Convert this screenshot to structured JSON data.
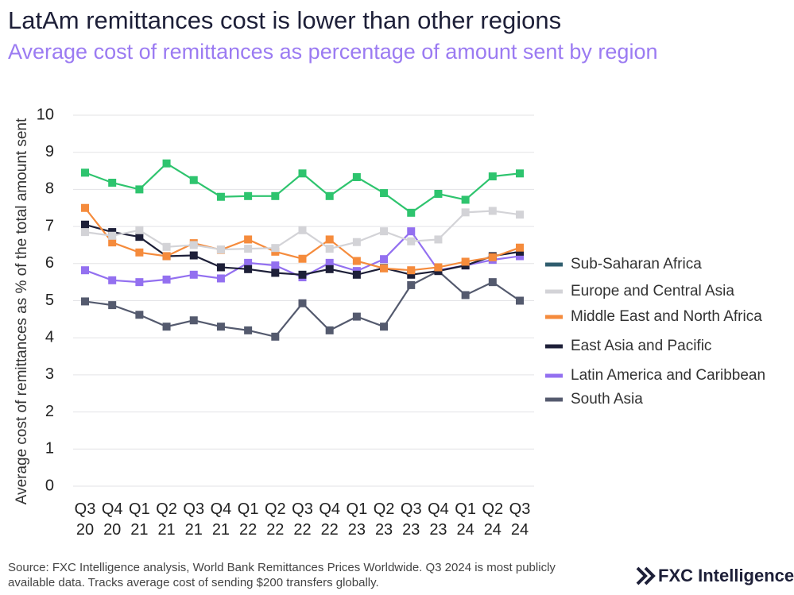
{
  "chart_data": {
    "type": "line",
    "title": "LatAm remittances cost is lower than other regions",
    "subtitle": "Average cost of remittances as percentage of amount sent by region",
    "y_label": "Average cost of remittances as % of the total amount sent",
    "categories": [
      "Q3 20",
      "Q4 20",
      "Q1 21",
      "Q2 21",
      "Q3 21",
      "Q4 21",
      "Q1 22",
      "Q2 22",
      "Q3 22",
      "Q4 22",
      "Q1 23",
      "Q2 23",
      "Q3 23",
      "Q4 23",
      "Q1 24",
      "Q2 24",
      "Q3 24"
    ],
    "series": [
      {
        "name": "Sub-Saharan Africa",
        "color": "#2ec46e",
        "legend_color": "#2f5d6e",
        "values": [
          8.45,
          8.18,
          8.0,
          8.7,
          8.25,
          7.8,
          7.82,
          7.82,
          8.43,
          7.82,
          8.33,
          7.9,
          7.37,
          7.88,
          7.72,
          8.35,
          8.43
        ]
      },
      {
        "name": "Europe and Central Asia",
        "color": "#d3d3d7",
        "values": [
          6.85,
          6.75,
          6.9,
          6.45,
          6.5,
          6.38,
          6.4,
          6.42,
          6.9,
          6.4,
          6.58,
          6.87,
          6.6,
          6.65,
          7.38,
          7.42,
          7.32
        ]
      },
      {
        "name": "Middle East and North Africa",
        "color": "#f58b3c",
        "values": [
          7.5,
          6.57,
          6.3,
          6.2,
          6.55,
          6.37,
          6.65,
          6.32,
          6.13,
          6.65,
          6.07,
          5.87,
          5.82,
          5.9,
          6.05,
          6.17,
          6.43
        ]
      },
      {
        "name": "East Asia and Pacific",
        "color": "#1d1f38",
        "values": [
          7.05,
          6.85,
          6.72,
          6.2,
          6.22,
          5.9,
          5.85,
          5.75,
          5.7,
          5.85,
          5.7,
          5.88,
          5.7,
          5.8,
          5.95,
          6.2,
          6.32
        ]
      },
      {
        "name": "Latin America and Caribbean",
        "color": "#9370f0",
        "values": [
          5.82,
          5.55,
          5.5,
          5.57,
          5.7,
          5.6,
          6.02,
          5.95,
          5.63,
          6.02,
          5.8,
          6.12,
          6.87,
          5.82,
          5.95,
          6.1,
          6.2
        ]
      },
      {
        "name": "South Asia",
        "color": "#545a6e",
        "values": [
          4.98,
          4.88,
          4.62,
          4.3,
          4.47,
          4.3,
          4.2,
          4.03,
          4.93,
          4.2,
          4.57,
          4.3,
          5.42,
          5.8,
          5.15,
          5.5,
          5.0
        ]
      }
    ],
    "ylim": [
      0,
      10
    ],
    "yticks": [
      0,
      1,
      2,
      3,
      4,
      5,
      6,
      7,
      8,
      9,
      10
    ],
    "grid": true,
    "source": "Source: FXC Intelligence analysis, World Bank Remittances Prices Worldwide. Q3 2024 is most publicly available data. Tracks average cost of sending $200 transfers globally.",
    "logo": "FXC Intelligence"
  }
}
